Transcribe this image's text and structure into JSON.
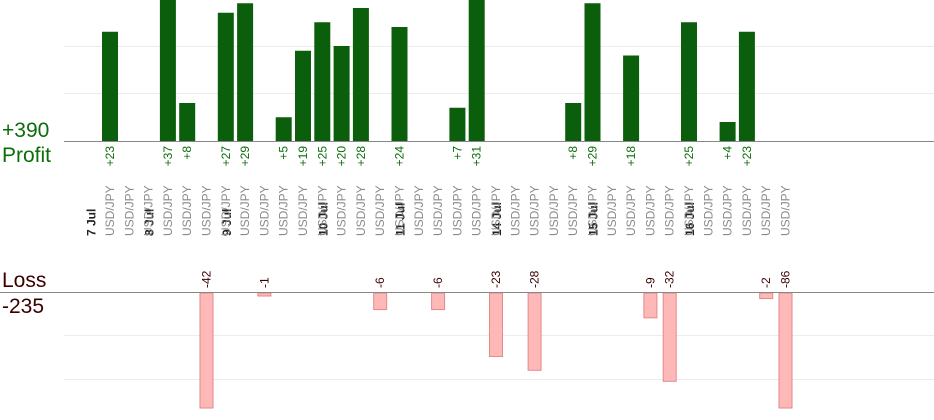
{
  "summary": {
    "profit_total": "+390",
    "profit_label": "Profit",
    "loss_label": "Loss",
    "loss_total": "-235"
  },
  "colors": {
    "profit_bar": "#0b5e0b",
    "profit_text": "#0a6e0a",
    "loss_bar": "#ffb8b8",
    "loss_bar_stroke": "#e38a8a",
    "loss_text": "#3a0000",
    "date_text": "#222222",
    "pair_text": "#8a8a8a",
    "grid": "#ececec",
    "axis": "#888888"
  },
  "chart_data": {
    "type": "bar",
    "grid": true,
    "date_labels": [
      "7 Jul",
      "8 Jul",
      "9 Jul",
      "10 Jul",
      "11 Jul",
      "14 Jul",
      "15 Jul",
      "16 Jul"
    ],
    "trades": [
      {
        "date_col": 0,
        "pair": "USD/JPY",
        "profit": 23
      },
      {
        "date_col": 0,
        "pair": "USD/JPY"
      },
      {
        "date_col": 0,
        "pair": "USD/JPY"
      },
      {
        "date_col": 1,
        "pair": "USD/JPY",
        "profit": 37
      },
      {
        "date_col": 1,
        "pair": "USD/JPY",
        "profit": 8
      },
      {
        "date_col": 1,
        "pair": "USD/JPY",
        "loss": -42
      },
      {
        "date_col": 1,
        "pair": "USD/JPY",
        "profit": 27
      },
      {
        "date_col": 2,
        "pair": "USD/JPY",
        "profit": 29
      },
      {
        "date_col": 2,
        "pair": "USD/JPY",
        "loss": -1
      },
      {
        "date_col": 2,
        "pair": "USD/JPY",
        "profit": 5
      },
      {
        "date_col": 2,
        "pair": "USD/JPY",
        "profit": 19
      },
      {
        "date_col": 2,
        "pair": "USD/JPY",
        "profit": 25
      },
      {
        "date_col": 3,
        "pair": "USD/JPY",
        "profit": 20
      },
      {
        "date_col": 3,
        "pair": "USD/JPY",
        "profit": 28
      },
      {
        "date_col": 3,
        "pair": "USD/JPY",
        "loss": -6
      },
      {
        "date_col": 3,
        "pair": "USD/JPY",
        "profit": 24
      },
      {
        "date_col": 4,
        "pair": "USD/JPY"
      },
      {
        "date_col": 4,
        "pair": "USD/JPY",
        "loss": -6
      },
      {
        "date_col": 4,
        "pair": "USD/JPY",
        "profit": 7
      },
      {
        "date_col": 4,
        "pair": "USD/JPY",
        "profit": 31
      },
      {
        "date_col": 4,
        "pair": "USD/JPY",
        "loss": -23
      },
      {
        "date_col": 5,
        "pair": "USD/JPY"
      },
      {
        "date_col": 5,
        "pair": "USD/JPY",
        "loss": -28
      },
      {
        "date_col": 5,
        "pair": "USD/JPY"
      },
      {
        "date_col": 5,
        "pair": "USD/JPY",
        "profit": 8
      },
      {
        "date_col": 5,
        "pair": "USD/JPY",
        "profit": 29
      },
      {
        "date_col": 6,
        "pair": "USD/JPY"
      },
      {
        "date_col": 6,
        "pair": "USD/JPY",
        "profit": 18
      },
      {
        "date_col": 6,
        "pair": "USD/JPY",
        "loss": -9
      },
      {
        "date_col": 6,
        "pair": "USD/JPY",
        "loss": -32
      },
      {
        "date_col": 6,
        "pair": "USD/JPY",
        "profit": 25
      },
      {
        "date_col": 7,
        "pair": "USD/JPY"
      },
      {
        "date_col": 7,
        "pair": "USD/JPY",
        "profit": 4
      },
      {
        "date_col": 7,
        "pair": "USD/JPY",
        "profit": 23
      },
      {
        "date_col": 7,
        "pair": "USD/JPY",
        "loss": -2
      },
      {
        "date_col": 7,
        "pair": "USD/JPY",
        "loss": -86
      }
    ],
    "profit_ylim": [
      0,
      30
    ],
    "loss_ylim": [
      -42,
      0
    ]
  }
}
